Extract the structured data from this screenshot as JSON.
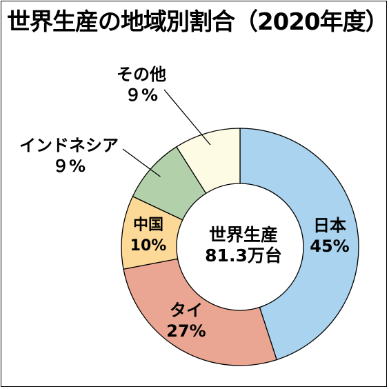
{
  "title": "世界生産の地域別割合（2020年度）",
  "chart_data": {
    "type": "donut",
    "title": "世界生産の地域別割合（2020年度）",
    "center_label": {
      "line1": "世界生産",
      "line2": "81.3万台"
    },
    "slices": [
      {
        "name": "日本",
        "value": 45,
        "label": "45%",
        "color": "#a9d3ee"
      },
      {
        "name": "タイ",
        "value": 27,
        "label": "27%",
        "color": "#eaa692"
      },
      {
        "name": "中国",
        "value": 10,
        "label": "10%",
        "color": "#fcd996"
      },
      {
        "name": "インドネシア",
        "value": 9,
        "label": "９%",
        "color": "#b2d1ab"
      },
      {
        "name": "その他",
        "value": 9,
        "label": "９%",
        "color": "#fefbe4"
      }
    ]
  }
}
